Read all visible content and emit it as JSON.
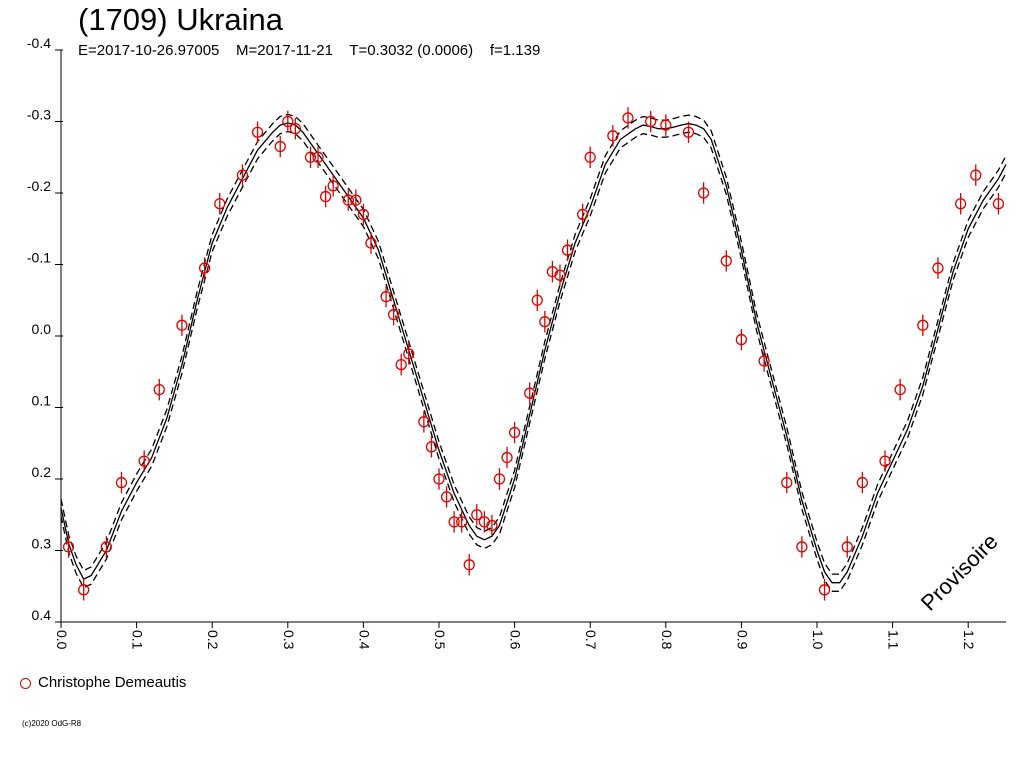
{
  "header": {
    "title": "(1709) Ukraina",
    "subtitle": "E=2017-10-26.97005    M=2017-11-21    T=0.3032 (0.0006)    f=1.139"
  },
  "legend": {
    "observer": "Christophe Demeautis"
  },
  "watermark": "Provisoire",
  "copyright": "(c)2020 OdG-R8",
  "colors": {
    "points": "#e00000",
    "curve": "#000000"
  },
  "chart_data": {
    "type": "scatter",
    "title": "(1709) Ukraina",
    "xlabel": "",
    "ylabel": "",
    "xlim": [
      0.0,
      1.25
    ],
    "ylim": [
      -0.4,
      0.4
    ],
    "y_inverted": true,
    "xticks": [
      "0.0",
      "0.1",
      "0.2",
      "0.3",
      "0.4",
      "0.5",
      "0.6",
      "0.7",
      "0.8",
      "0.9",
      "1.0",
      "1.1",
      "1.2"
    ],
    "xtick_values": [
      0.0,
      0.1,
      0.2,
      0.3,
      0.4,
      0.5,
      0.6,
      0.7,
      0.8,
      0.9,
      1.0,
      1.1,
      1.2
    ],
    "yticks": [
      "-0.4",
      "-0.3",
      "-0.2",
      "-0.1",
      "0.0",
      "0.1",
      "0.2",
      "0.3",
      "0.4"
    ],
    "ytick_values": [
      -0.4,
      -0.3,
      -0.2,
      -0.1,
      0.0,
      0.1,
      0.2,
      0.3,
      0.4
    ],
    "grid": false,
    "fit_curve": {
      "name": "fit",
      "x": [
        0.0,
        0.01,
        0.02,
        0.03,
        0.04,
        0.06,
        0.08,
        0.1,
        0.12,
        0.14,
        0.16,
        0.18,
        0.2,
        0.22,
        0.24,
        0.26,
        0.28,
        0.29,
        0.3,
        0.31,
        0.32,
        0.34,
        0.36,
        0.38,
        0.4,
        0.42,
        0.44,
        0.46,
        0.48,
        0.5,
        0.52,
        0.54,
        0.55,
        0.56,
        0.57,
        0.58,
        0.6,
        0.62,
        0.64,
        0.66,
        0.68,
        0.7,
        0.72,
        0.74,
        0.76,
        0.77,
        0.78,
        0.79,
        0.8,
        0.81,
        0.82,
        0.83,
        0.84,
        0.85,
        0.86,
        0.88,
        0.9,
        0.92,
        0.94,
        0.96,
        0.98,
        1.0,
        1.01,
        1.02,
        1.03,
        1.04,
        1.06,
        1.08,
        1.1,
        1.12,
        1.14,
        1.16,
        1.18,
        1.2,
        1.22,
        1.24,
        1.25
      ],
      "y": [
        0.24,
        0.29,
        0.32,
        0.34,
        0.335,
        0.3,
        0.245,
        0.205,
        0.17,
        0.115,
        0.04,
        -0.05,
        -0.13,
        -0.18,
        -0.22,
        -0.26,
        -0.285,
        -0.295,
        -0.298,
        -0.295,
        -0.285,
        -0.255,
        -0.225,
        -0.195,
        -0.165,
        -0.12,
        -0.05,
        0.02,
        0.09,
        0.16,
        0.22,
        0.265,
        0.28,
        0.285,
        0.28,
        0.265,
        0.2,
        0.11,
        0.02,
        -0.06,
        -0.13,
        -0.18,
        -0.24,
        -0.275,
        -0.29,
        -0.295,
        -0.293,
        -0.29,
        -0.29,
        -0.292,
        -0.295,
        -0.297,
        -0.295,
        -0.29,
        -0.275,
        -0.21,
        -0.12,
        -0.02,
        0.06,
        0.14,
        0.23,
        0.3,
        0.33,
        0.345,
        0.345,
        0.33,
        0.28,
        0.22,
        0.175,
        0.13,
        0.07,
        -0.01,
        -0.09,
        -0.15,
        -0.19,
        -0.22,
        -0.24
      ],
      "band": 0.012
    },
    "series": [
      {
        "name": "Christophe Demeautis",
        "x": [
          0.01,
          0.03,
          0.06,
          0.08,
          0.11,
          0.13,
          0.16,
          0.19,
          0.21,
          0.24,
          0.26,
          0.29,
          0.3,
          0.31,
          0.33,
          0.34,
          0.35,
          0.36,
          0.38,
          0.39,
          0.4,
          0.41,
          0.43,
          0.44,
          0.45,
          0.46,
          0.48,
          0.49,
          0.5,
          0.51,
          0.52,
          0.53,
          0.54,
          0.55,
          0.56,
          0.57,
          0.58,
          0.59,
          0.6,
          0.62,
          0.63,
          0.64,
          0.65,
          0.66,
          0.67,
          0.69,
          0.7,
          0.73,
          0.75,
          0.78,
          0.8,
          0.83,
          0.85,
          0.88,
          0.9,
          0.93,
          0.96,
          0.98,
          1.01,
          1.04,
          1.06,
          1.09,
          1.11,
          1.14,
          1.16,
          1.19,
          1.21,
          1.24
        ],
        "y": [
          0.295,
          0.355,
          0.295,
          0.205,
          0.175,
          0.075,
          -0.015,
          -0.095,
          -0.185,
          -0.225,
          -0.285,
          -0.265,
          -0.3,
          -0.29,
          -0.25,
          -0.25,
          -0.195,
          -0.21,
          -0.19,
          -0.19,
          -0.17,
          -0.13,
          -0.055,
          -0.03,
          0.04,
          0.025,
          0.12,
          0.155,
          0.2,
          0.225,
          0.26,
          0.26,
          0.32,
          0.25,
          0.26,
          0.265,
          0.2,
          0.17,
          0.135,
          0.08,
          -0.05,
          -0.02,
          -0.09,
          -0.085,
          -0.12,
          -0.17,
          -0.25,
          -0.28,
          -0.305,
          -0.3,
          -0.295,
          -0.285,
          -0.2,
          -0.105,
          0.005,
          0.035,
          0.205,
          0.295,
          0.355,
          0.295,
          0.205,
          0.175,
          0.075,
          -0.015,
          -0.095,
          -0.185,
          -0.225,
          -0.185
        ],
        "err": 0.015
      }
    ]
  }
}
